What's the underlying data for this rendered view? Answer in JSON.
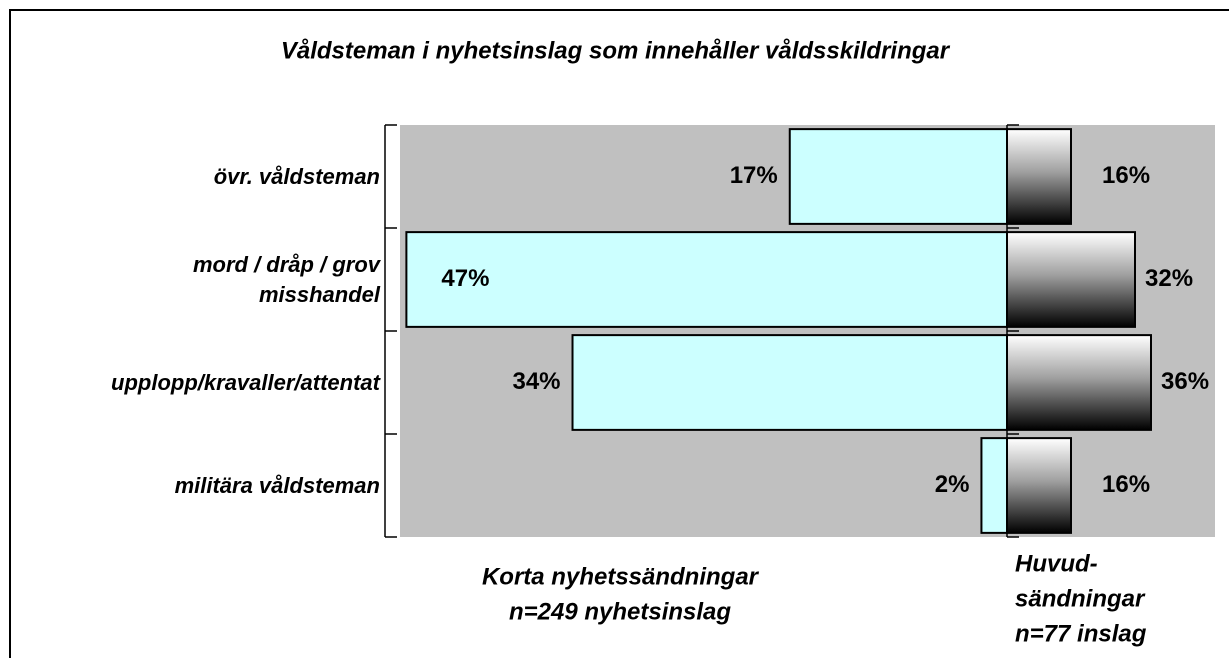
{
  "chart_data": {
    "type": "butterfly-bar",
    "title": "Våldsteman i nyhetsinslag som innehåller våldsskildringar",
    "categories": [
      "övr. våldsteman",
      "mord / dråp / grov misshandel",
      "upplopp/kravaller/attentat",
      "militära våldsteman"
    ],
    "series": [
      {
        "name_lines": [
          "Korta nyhetssändningar"
        ],
        "n_label": "n=249 nyhetsinslag",
        "color": "#ccffff",
        "side": "left",
        "xlim": [
          0,
          47.5
        ],
        "values": [
          17,
          47,
          34,
          2
        ],
        "value_labels": [
          "17%",
          "47%",
          "34%",
          "2%"
        ]
      },
      {
        "name_lines": [
          "Huvud-",
          "sändningar"
        ],
        "n_label": "n=77 inslag",
        "color": "gradient-white-black",
        "side": "right",
        "xlim": [
          0,
          52
        ],
        "values": [
          16,
          32,
          36,
          16
        ],
        "value_labels": [
          "16%",
          "32%",
          "36%",
          "16%"
        ]
      }
    ],
    "background": "#c0c0c0"
  }
}
